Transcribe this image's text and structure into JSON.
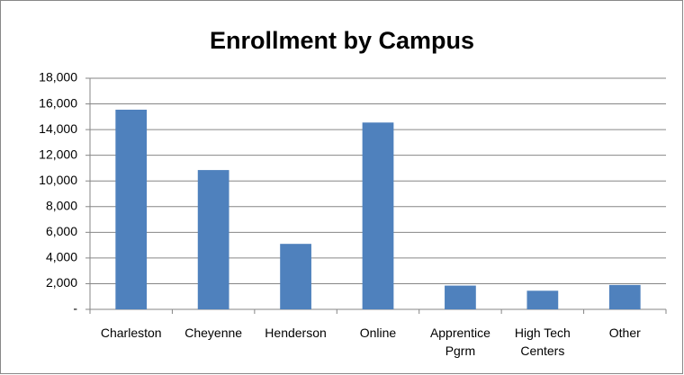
{
  "chart_data": {
    "type": "bar",
    "title": "Enrollment by Campus",
    "categories": [
      "Charleston",
      "Cheyenne",
      "Henderson",
      "Online",
      "Apprentice Pgrm",
      "High Tech Centers",
      "Other"
    ],
    "values": [
      15550,
      10850,
      5100,
      14550,
      1850,
      1450,
      1900
    ],
    "color": "#4f81bd",
    "ylim": [
      0,
      18000
    ],
    "yticks": [
      {
        "value": 0,
        "label": "-"
      },
      {
        "value": 2000,
        "label": "2,000"
      },
      {
        "value": 4000,
        "label": "4,000"
      },
      {
        "value": 6000,
        "label": "6,000"
      },
      {
        "value": 8000,
        "label": "8,000"
      },
      {
        "value": 10000,
        "label": "10,000"
      },
      {
        "value": 12000,
        "label": "12,000"
      },
      {
        "value": 14000,
        "label": "14,000"
      },
      {
        "value": 16000,
        "label": "16,000"
      },
      {
        "value": 18000,
        "label": "18,000"
      }
    ],
    "grid": true
  }
}
